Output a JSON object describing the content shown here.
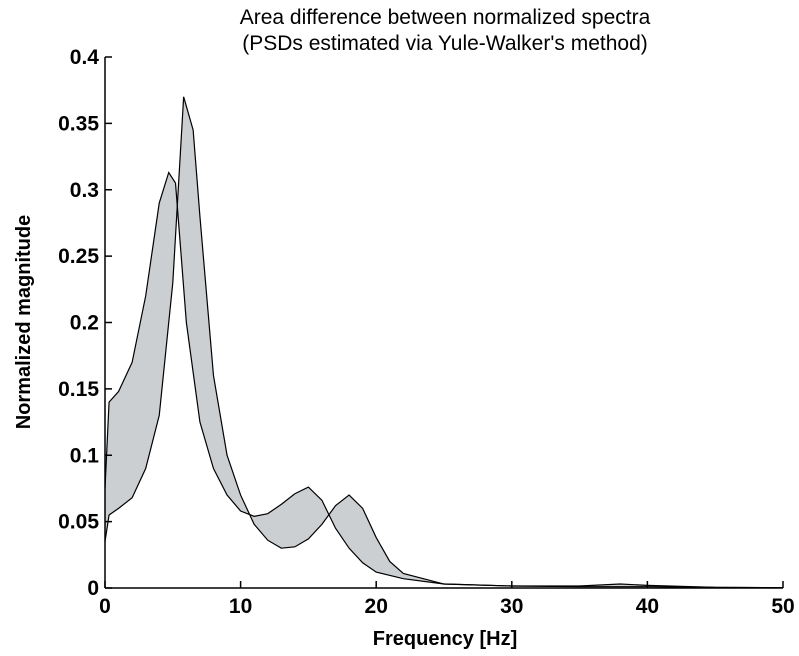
{
  "chart_data": {
    "type": "area",
    "title": "Area difference between normalized spectra",
    "subtitle": "(PSDs estimated via Yule-Walker's method)",
    "xlabel": "Frequency [Hz]",
    "ylabel": "Normalized magnitude",
    "xlim": [
      0,
      50
    ],
    "ylim": [
      0,
      0.4
    ],
    "xticks": [
      0,
      10,
      20,
      30,
      40,
      50
    ],
    "xtick_labels": [
      "0",
      "10",
      "20",
      "30",
      "40",
      "50"
    ],
    "yticks": [
      0,
      0.05,
      0.1,
      0.15,
      0.2,
      0.25,
      0.3,
      0.35,
      0.4
    ],
    "ytick_labels": [
      "0",
      "0.05",
      "0.1",
      "0.15",
      "0.2",
      "0.25",
      "0.3",
      "0.35",
      "0.4"
    ],
    "grid": false,
    "fill_color": "#cccfd2",
    "edge_color": "#000000",
    "series": [
      {
        "x": [
          0,
          0.3,
          1,
          2,
          3,
          4,
          4.7,
          5.2,
          6,
          7,
          8,
          9,
          10,
          11,
          12,
          13,
          14,
          15,
          16,
          17,
          18,
          19,
          20,
          22,
          25,
          30,
          35,
          40,
          45,
          50
        ],
        "values": [
          0.075,
          0.14,
          0.148,
          0.17,
          0.22,
          0.29,
          0.313,
          0.305,
          0.2,
          0.125,
          0.09,
          0.07,
          0.058,
          0.054,
          0.056,
          0.063,
          0.071,
          0.076,
          0.066,
          0.045,
          0.03,
          0.019,
          0.012,
          0.007,
          0.003,
          0.0015,
          0.001,
          0.001,
          0.0005,
          0.0002
        ]
      },
      {
        "x": [
          0,
          0.3,
          1,
          2,
          3,
          4,
          5,
          5.8,
          6.5,
          7,
          8,
          9,
          10,
          11,
          12,
          13,
          14,
          15,
          16,
          17,
          18,
          19,
          20,
          21,
          22,
          25,
          30,
          35,
          38,
          40,
          45,
          50
        ],
        "values": [
          0.035,
          0.055,
          0.06,
          0.068,
          0.09,
          0.13,
          0.23,
          0.37,
          0.345,
          0.28,
          0.16,
          0.1,
          0.07,
          0.048,
          0.036,
          0.03,
          0.031,
          0.037,
          0.048,
          0.062,
          0.07,
          0.06,
          0.038,
          0.02,
          0.011,
          0.003,
          0.0015,
          0.0015,
          0.003,
          0.002,
          0.0005,
          0.0002
        ]
      }
    ]
  }
}
